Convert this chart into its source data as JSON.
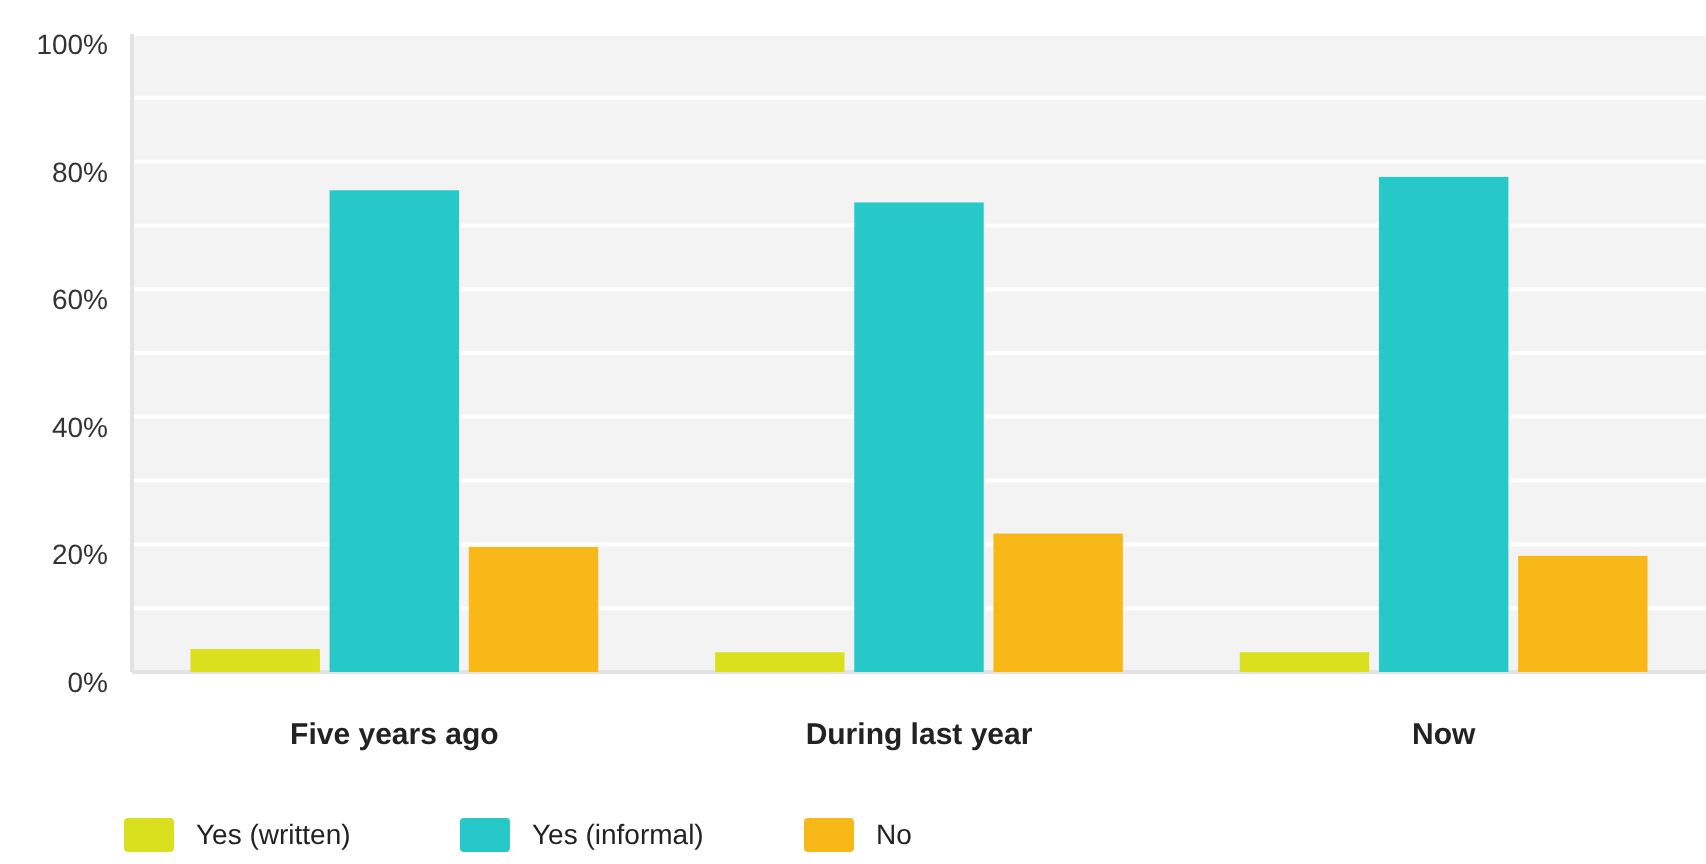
{
  "chart_data": {
    "type": "bar",
    "categories": [
      "Five years ago",
      "During last year",
      "Now"
    ],
    "series": [
      {
        "name": "Yes (written)",
        "color": "#dbe01e",
        "values": [
          3.6,
          3.1,
          3.1
        ]
      },
      {
        "name": "Yes (informal)",
        "color": "#26c8c8",
        "values": [
          75.5,
          73.6,
          77.6
        ]
      },
      {
        "name": "No",
        "color": "#f8b918",
        "values": [
          19.6,
          21.7,
          18.2
        ]
      }
    ],
    "ylim": [
      0,
      100
    ],
    "yticks": [
      {
        "value": 0,
        "label": "0%"
      },
      {
        "value": 10,
        "label": null
      },
      {
        "value": 20,
        "label": "20%"
      },
      {
        "value": 30,
        "label": null
      },
      {
        "value": 40,
        "label": "40%"
      },
      {
        "value": 50,
        "label": null
      },
      {
        "value": 60,
        "label": "60%"
      },
      {
        "value": 70,
        "label": null
      },
      {
        "value": 80,
        "label": "80%"
      },
      {
        "value": 90,
        "label": null
      },
      {
        "value": 100,
        "label": "100%"
      }
    ],
    "grid": "y",
    "legend": "bottom left"
  }
}
